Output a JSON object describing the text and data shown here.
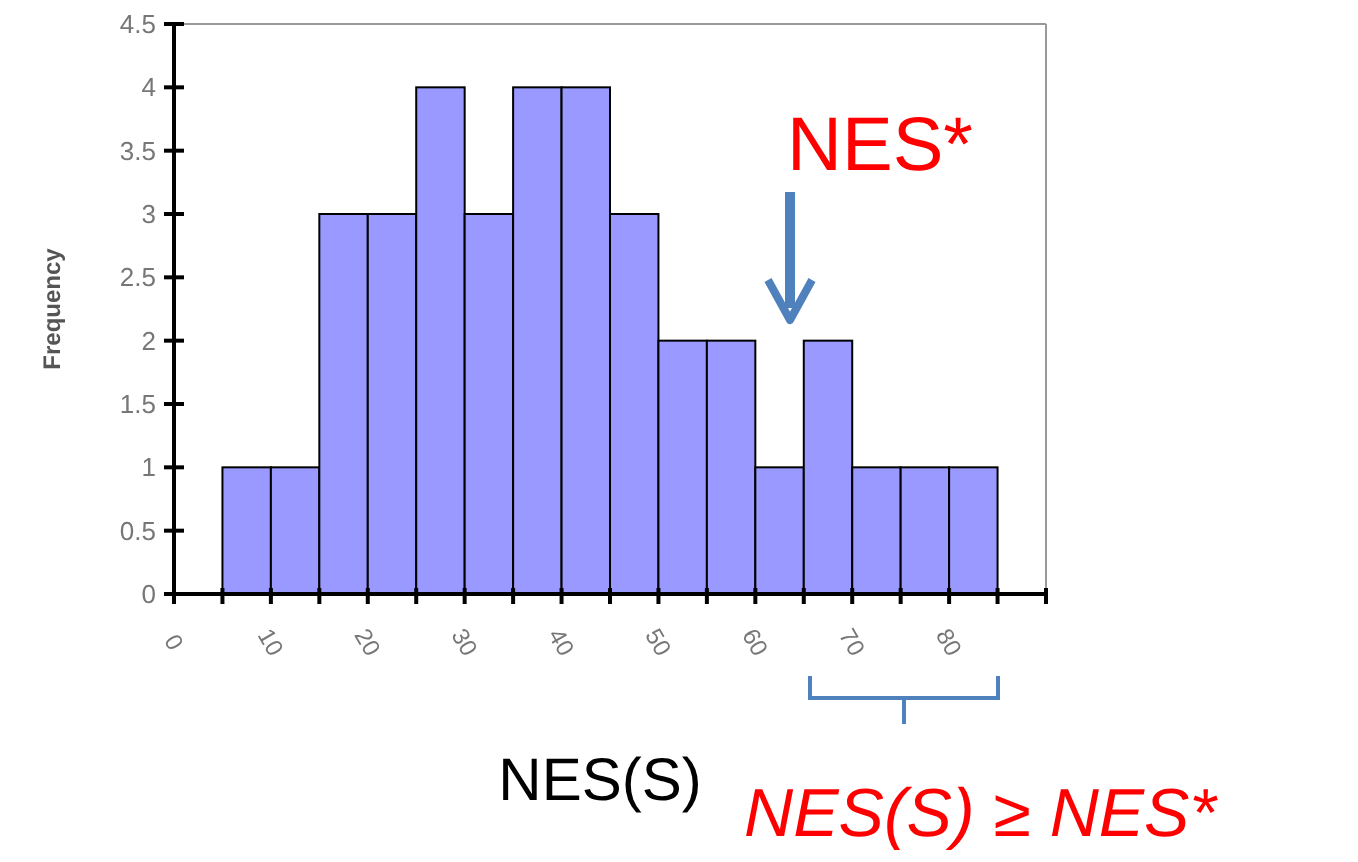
{
  "chart_data": {
    "type": "histogram",
    "xlabel": "NES(S)",
    "ylabel": "Frequency",
    "bins": [
      5,
      10,
      15,
      20,
      25,
      30,
      35,
      40,
      45,
      50,
      55,
      60,
      65,
      70,
      75,
      80,
      85
    ],
    "values": [
      1,
      1,
      3,
      3,
      4,
      3,
      4,
      4,
      3,
      2,
      2,
      1,
      2,
      1,
      1,
      1
    ],
    "color": "#9999ff",
    "xlim": [
      0,
      90
    ],
    "ylim": [
      0,
      4.5
    ],
    "xticks": [
      0,
      {
        "value": 5,
        "label": null
      },
      10,
      {
        "value": 15,
        "label": null
      },
      20,
      {
        "value": 25,
        "label": null
      },
      30,
      {
        "value": 35,
        "label": null
      },
      40,
      {
        "value": 45,
        "label": null
      },
      50,
      {
        "value": 55,
        "label": null
      },
      60,
      {
        "value": 65,
        "label": null
      },
      70,
      {
        "value": 75,
        "label": null
      },
      80,
      {
        "value": 85,
        "label": null
      },
      {
        "value": 90,
        "label": null
      }
    ],
    "yticks": [
      0,
      0.5,
      1,
      1.5,
      2,
      2.5,
      3,
      3.5,
      4,
      4.5
    ],
    "grid": false,
    "annotations": [
      "NES*",
      "NES(S) ≥ NES*"
    ]
  }
}
